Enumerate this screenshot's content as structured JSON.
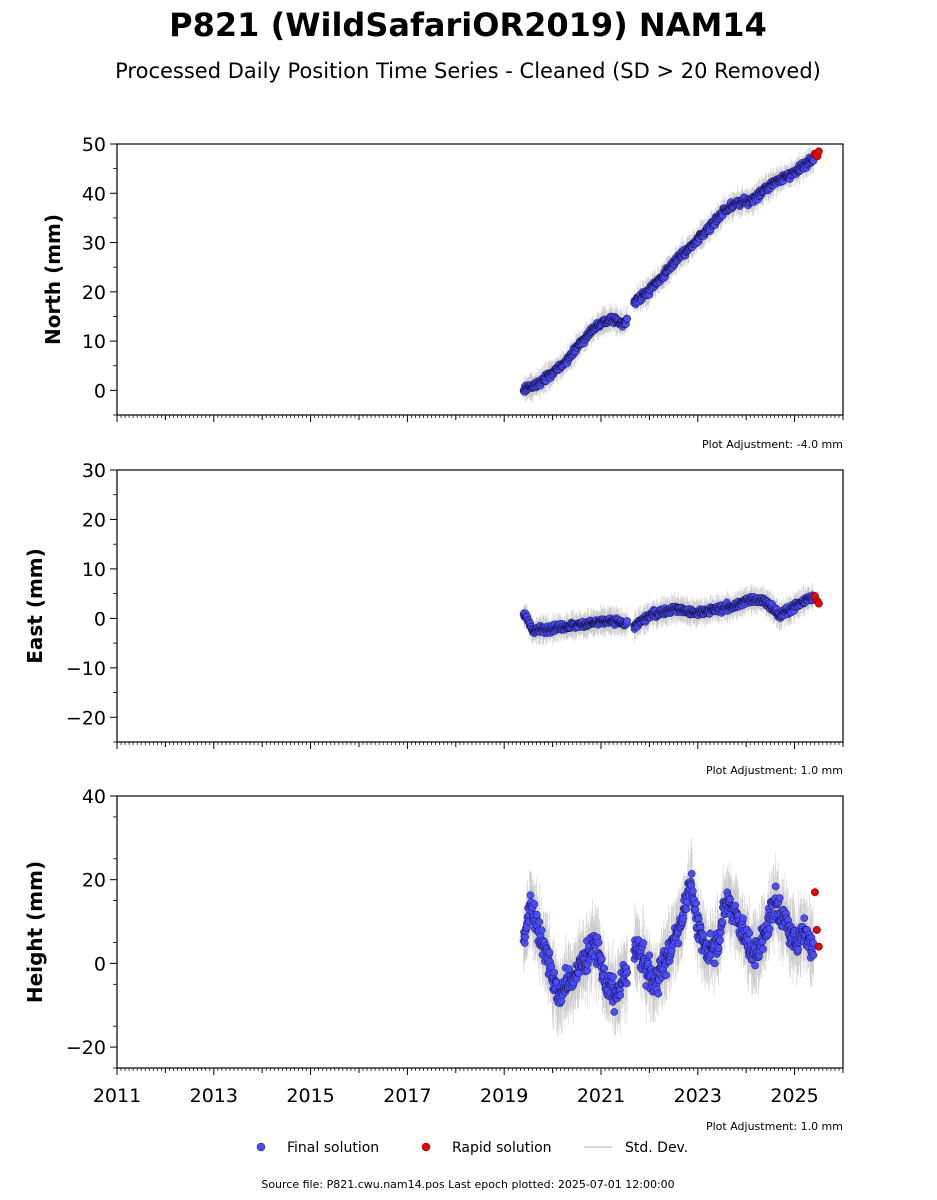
{
  "title": "P821 (WildSafariOR2019) NAM14",
  "subtitle": "Processed Daily Position Time Series - Cleaned (SD > 20 Removed)",
  "footer": "Source file: P821.cwu.nam14.pos  Last epoch plotted: 2025-07-01 12:00:00",
  "legend": {
    "final": "Final solution",
    "rapid": "Rapid solution",
    "stddev": "Std. Dev."
  },
  "colors": {
    "final": "#4b4bff",
    "rapid": "#ee0000",
    "stddev": "#b0b0b0",
    "marker_edge": "#000000"
  },
  "chart_data": [
    {
      "type": "scatter",
      "ylabel": "North (mm)",
      "adjustment": "Plot Adjustment: -4.0 mm",
      "xlim": [
        2011,
        2026
      ],
      "ylim": [
        -5,
        50
      ],
      "yticks": [
        0,
        10,
        20,
        30,
        40,
        50
      ],
      "xtick_labels_shown": false,
      "series": [
        {
          "name": "Final solution",
          "x": [
            2019.4,
            2019.7,
            2020.0,
            2020.3,
            2020.6,
            2020.9,
            2021.2,
            2021.5,
            2021.7,
            2022.0,
            2022.3,
            2022.6,
            2022.9,
            2023.2,
            2023.5,
            2023.8,
            2024.1,
            2024.4,
            2024.7,
            2025.0,
            2025.3,
            2025.4
          ],
          "y": [
            0.0,
            1.5,
            3.5,
            6.0,
            10.0,
            13.0,
            14.5,
            13.5,
            18.0,
            20.5,
            23.5,
            27.0,
            29.5,
            32.5,
            36.0,
            38.0,
            38.5,
            41.0,
            43.0,
            44.0,
            46.5,
            47.0
          ]
        },
        {
          "name": "Rapid solution",
          "x": [
            2025.42,
            2025.47,
            2025.5
          ],
          "y": [
            48.0,
            47.5,
            48.5
          ]
        }
      ]
    },
    {
      "type": "scatter",
      "ylabel": "East (mm)",
      "adjustment": "Plot Adjustment: 1.0 mm",
      "xlim": [
        2011,
        2026
      ],
      "ylim": [
        -25,
        30
      ],
      "yticks": [
        -20,
        -10,
        0,
        10,
        20,
        30
      ],
      "xtick_labels_shown": false,
      "series": [
        {
          "name": "Final solution",
          "x": [
            2019.4,
            2019.6,
            2020.0,
            2020.4,
            2020.8,
            2021.2,
            2021.5,
            2021.7,
            2022.0,
            2022.3,
            2022.6,
            2022.9,
            2023.2,
            2023.5,
            2023.8,
            2024.1,
            2024.4,
            2024.7,
            2025.0,
            2025.3,
            2025.4
          ],
          "y": [
            1.0,
            -2.5,
            -2.0,
            -1.5,
            -1.0,
            -0.5,
            -1.0,
            -1.5,
            0.5,
            1.5,
            2.0,
            1.0,
            1.5,
            2.0,
            2.5,
            4.0,
            3.5,
            0.5,
            2.5,
            4.0,
            4.0
          ]
        },
        {
          "name": "Rapid solution",
          "x": [
            2025.42,
            2025.47,
            2025.5
          ],
          "y": [
            4.5,
            3.5,
            3.0
          ]
        }
      ]
    },
    {
      "type": "scatter",
      "ylabel": "Height (mm)",
      "adjustment": "Plot Adjustment: 1.0 mm",
      "xlim": [
        2011,
        2026
      ],
      "ylim": [
        -25,
        40
      ],
      "yticks": [
        -20,
        0,
        20,
        40
      ],
      "xticks": [
        2011,
        2013,
        2015,
        2017,
        2019,
        2021,
        2023,
        2025
      ],
      "xtick_labels_shown": true,
      "series": [
        {
          "name": "Final solution",
          "x": [
            2019.4,
            2019.55,
            2019.7,
            2019.9,
            2020.1,
            2020.3,
            2020.5,
            2020.7,
            2020.9,
            2021.1,
            2021.3,
            2021.5,
            2021.7,
            2021.9,
            2022.1,
            2022.3,
            2022.5,
            2022.7,
            2022.85,
            2023.0,
            2023.2,
            2023.4,
            2023.6,
            2023.8,
            2024.0,
            2024.2,
            2024.4,
            2024.6,
            2024.8,
            2025.0,
            2025.2,
            2025.4
          ],
          "y": [
            5.0,
            15.0,
            8.0,
            2.0,
            -8.0,
            -5.0,
            -2.0,
            2.0,
            5.0,
            -5.0,
            -8.0,
            -3.0,
            4.0,
            0.0,
            -5.0,
            0.0,
            5.0,
            12.0,
            20.0,
            8.0,
            3.0,
            5.0,
            15.0,
            12.0,
            5.0,
            2.0,
            8.0,
            15.0,
            10.0,
            5.0,
            8.0,
            3.0
          ]
        },
        {
          "name": "Rapid solution",
          "x": [
            2025.42,
            2025.46,
            2025.5
          ],
          "y": [
            17.0,
            8.0,
            4.0
          ]
        }
      ]
    }
  ]
}
